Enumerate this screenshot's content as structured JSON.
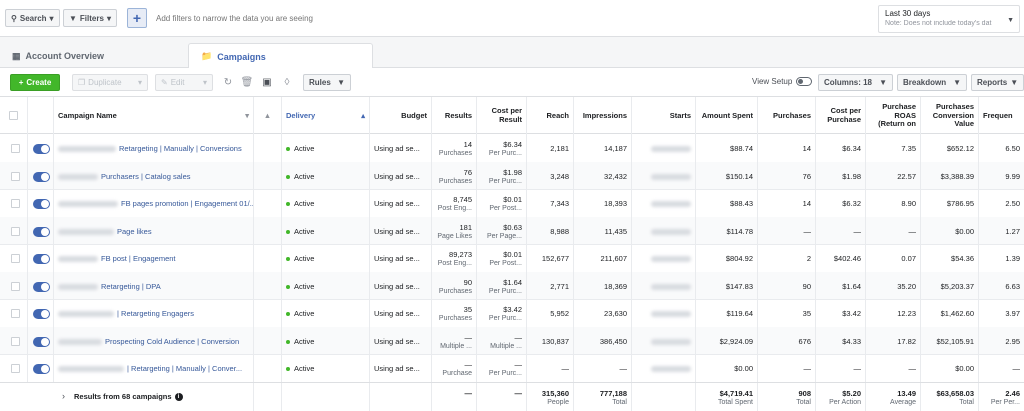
{
  "filterbar": {
    "search_label": "Search",
    "filters_label": "Filters",
    "add_label": "+",
    "placeholder": "Add filters to narrow the data you are seeing",
    "date_range": "Last 30 days",
    "date_note": "Note: Does not include today's dat"
  },
  "tabs": [
    {
      "label": "Account Overview",
      "icon": "account-overview-icon"
    },
    {
      "label": "Campaigns",
      "icon": "folder-icon"
    }
  ],
  "toolbar": {
    "create": "Create",
    "duplicate": "Duplicate",
    "edit": "Edit",
    "rules": "Rules",
    "view_setup": "View Setup",
    "columns": "Columns: 18",
    "breakdown": "Breakdown",
    "reports": "Reports"
  },
  "headers": {
    "campaign_name": "Campaign Name",
    "delivery": "Delivery",
    "budget": "Budget",
    "results": "Results",
    "cost_per_result": "Cost per Result",
    "reach": "Reach",
    "impressions": "Impressions",
    "starts": "Starts",
    "amount_spent": "Amount Spent",
    "purchases": "Purchases",
    "cost_per_purchase": "Cost per Purchase",
    "purchase_roas": "Purchase ROAS (Return on",
    "purchases_conversion_value": "Purchases Conversion Value",
    "frequency": "Frequen"
  },
  "rows": [
    {
      "name": "Retargeting | Manually | Conversions",
      "delivery": "Active",
      "budget": "Using ad se...",
      "results": "14",
      "results_sub": "Purchases",
      "cpr": "$6.34",
      "cpr_sub": "Per Purc...",
      "reach": "2,181",
      "impressions": "14,187",
      "spent": "$88.74",
      "purchases": "14",
      "cpp": "$6.34",
      "roas": "7.35",
      "pcv": "$652.12",
      "freq": "6.50"
    },
    {
      "name": "Purchasers | Catalog sales",
      "delivery": "Active",
      "budget": "Using ad se...",
      "results": "76",
      "results_sub": "Purchases",
      "cpr": "$1.98",
      "cpr_sub": "Per Purc...",
      "reach": "3,248",
      "impressions": "32,432",
      "spent": "$150.14",
      "purchases": "76",
      "cpp": "$1.98",
      "roas": "22.57",
      "pcv": "$3,388.39",
      "freq": "9.99"
    },
    {
      "name": "FB pages promotion | Engagement 01/...",
      "delivery": "Active",
      "budget": "Using ad se...",
      "results": "8,745",
      "results_sub": "Post Eng...",
      "cpr": "$0.01",
      "cpr_sub": "Per Post...",
      "reach": "7,343",
      "impressions": "18,393",
      "spent": "$88.43",
      "purchases": "14",
      "cpp": "$6.32",
      "roas": "8.90",
      "pcv": "$786.95",
      "freq": "2.50"
    },
    {
      "name": "Page likes",
      "delivery": "Active",
      "budget": "Using ad se...",
      "results": "181",
      "results_sub": "Page Likes",
      "cpr": "$0.63",
      "cpr_sub": "Per Page...",
      "reach": "8,988",
      "impressions": "11,435",
      "spent": "$114.78",
      "purchases": "—",
      "cpp": "—",
      "roas": "—",
      "pcv": "$0.00",
      "freq": "1.27"
    },
    {
      "name": "FB post | Engagement",
      "delivery": "Active",
      "budget": "Using ad se...",
      "results": "89,273",
      "results_sub": "Post Eng...",
      "cpr": "$0.01",
      "cpr_sub": "Per Post...",
      "reach": "152,677",
      "impressions": "211,607",
      "spent": "$804.92",
      "purchases": "2",
      "cpp": "$402.46",
      "roas": "0.07",
      "pcv": "$54.36",
      "freq": "1.39"
    },
    {
      "name": "Retargeting | DPA",
      "delivery": "Active",
      "budget": "Using ad se...",
      "results": "90",
      "results_sub": "Purchases",
      "cpr": "$1.64",
      "cpr_sub": "Per Purc...",
      "reach": "2,771",
      "impressions": "18,369",
      "spent": "$147.83",
      "purchases": "90",
      "cpp": "$1.64",
      "roas": "35.20",
      "pcv": "$5,203.37",
      "freq": "6.63"
    },
    {
      "name": "| Retargeting Engagers",
      "delivery": "Active",
      "budget": "Using ad se...",
      "results": "35",
      "results_sub": "Purchases",
      "cpr": "$3.42",
      "cpr_sub": "Per Purc...",
      "reach": "5,952",
      "impressions": "23,630",
      "spent": "$119.64",
      "purchases": "35",
      "cpp": "$3.42",
      "roas": "12.23",
      "pcv": "$1,462.60",
      "freq": "3.97"
    },
    {
      "name": "Prospecting Cold Audience | Conversion",
      "delivery": "Active",
      "budget": "Using ad se...",
      "results": "—",
      "results_sub": "Multiple ...",
      "cpr": "—",
      "cpr_sub": "Multiple ...",
      "reach": "130,837",
      "impressions": "386,450",
      "spent": "$2,924.09",
      "purchases": "676",
      "cpp": "$4.33",
      "roas": "17.82",
      "pcv": "$52,105.91",
      "freq": "2.95"
    },
    {
      "name": "| Retargeting | Manually | Conver...",
      "delivery": "Active",
      "budget": "Using ad se...",
      "results": "—",
      "results_sub": "Purchase",
      "cpr": "—",
      "cpr_sub": "Per Purc...",
      "reach": "—",
      "impressions": "—",
      "spent": "$0.00",
      "purchases": "—",
      "cpp": "—",
      "roas": "—",
      "pcv": "$0.00",
      "freq": "—"
    }
  ],
  "footer": {
    "label": "Results from 68 campaigns",
    "results": "—",
    "cpr": "—",
    "reach": "315,360",
    "reach_sub": "People",
    "impressions": "777,188",
    "impressions_sub": "Total",
    "spent": "$4,719.41",
    "spent_sub": "Total Spent",
    "purchases": "908",
    "purchases_sub": "Total",
    "cpp": "$5.20",
    "cpp_sub": "Per Action",
    "roas": "13.49",
    "roas_sub": "Average",
    "pcv": "$63,658.03",
    "pcv_sub": "Total",
    "freq": "2.46",
    "freq_sub": "Per Per..."
  }
}
